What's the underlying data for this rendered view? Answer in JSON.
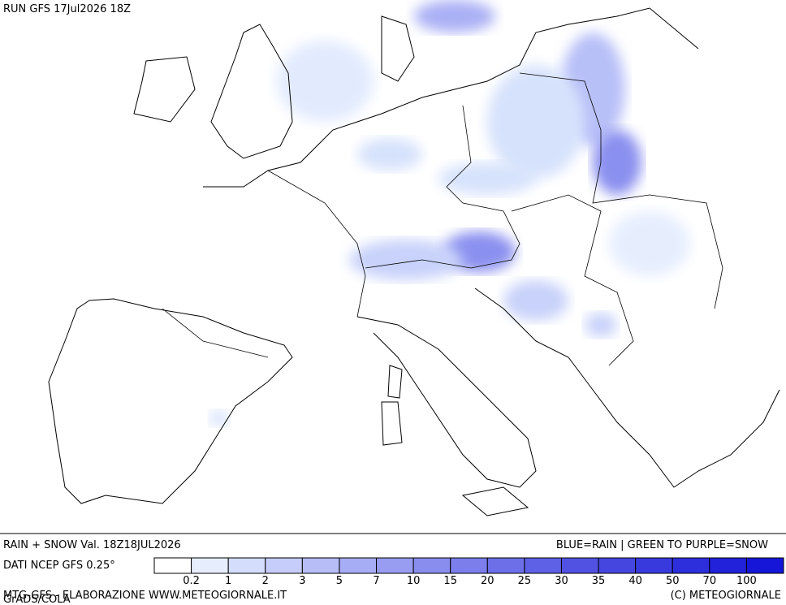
{
  "header": {
    "run": "RUN GFS 17Jul2026 18Z"
  },
  "footer": {
    "product": "RAIN + SNOW Val. 18Z18JUL2026",
    "key": "BLUE=RAIN | GREEN TO PURPLE=SNOW",
    "source": "DATI NCEP GFS 0.25°",
    "credit": "MTG-GFS - ELABORAZIONE WWW.METEOGIORNALE.IT",
    "grads": "GrADS/COLA",
    "copyright": "(C) METEOGIORNALE"
  },
  "legend": {
    "labels": [
      "0.2",
      "1",
      "2",
      "3",
      "5",
      "7",
      "10",
      "15",
      "20",
      "25",
      "30",
      "35",
      "40",
      "50",
      "70",
      "100"
    ],
    "colors": [
      "#ffffff",
      "#e6eefe",
      "#d4defc",
      "#c6cdfa",
      "#b6bdf7",
      "#a7adf4",
      "#989df1",
      "#898dee",
      "#7b7eeb",
      "#6c6fe8",
      "#5e60e5",
      "#5152e2",
      "#4546e0",
      "#393ade",
      "#2d2edc",
      "#2122da",
      "#1516d8"
    ]
  }
}
